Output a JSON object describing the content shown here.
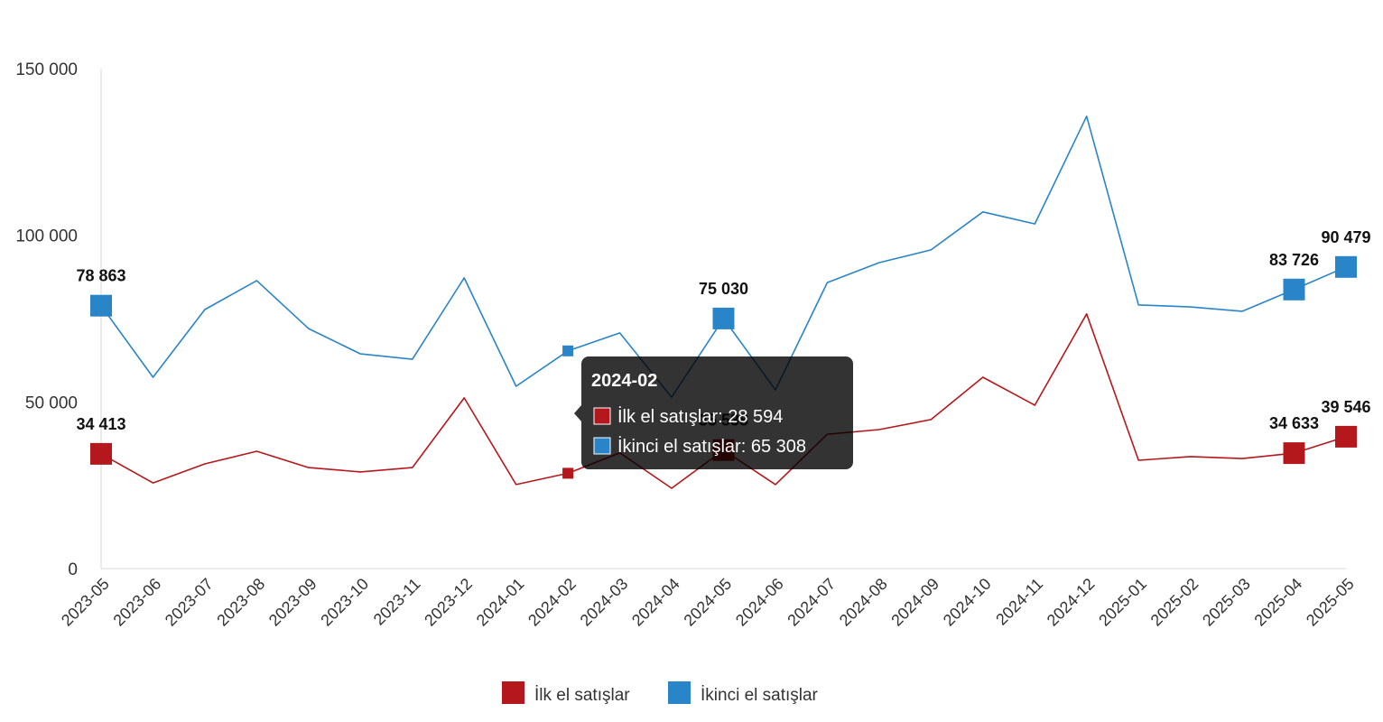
{
  "chart_data": {
    "type": "line",
    "categories": [
      "2023-05",
      "2023-06",
      "2023-07",
      "2023-08",
      "2023-09",
      "2023-10",
      "2023-11",
      "2023-12",
      "2024-01",
      "2024-02",
      "2024-03",
      "2024-04",
      "2024-05",
      "2024-06",
      "2024-07",
      "2024-08",
      "2024-09",
      "2024-10",
      "2024-11",
      "2024-12",
      "2025-01",
      "2025-02",
      "2025-03",
      "2025-04",
      "2025-05"
    ],
    "series": [
      {
        "name": "İlk el satışlar",
        "color": "#b5181c",
        "values": [
          34413,
          25700,
          31400,
          35200,
          30300,
          29000,
          30300,
          51200,
          25200,
          28594,
          34700,
          24100,
          35538,
          25200,
          40300,
          41700,
          44700,
          57400,
          49000,
          76400,
          32500,
          33600,
          33000,
          34633,
          39546
        ],
        "data_labels": {
          "2023-05": "34 413",
          "2024-05": "35 538",
          "2025-04": "34 633",
          "2025-05": "39 546"
        }
      },
      {
        "name": "İkinci el satışlar",
        "color": "#2a84c8",
        "values": [
          78863,
          57400,
          77700,
          86400,
          72000,
          64400,
          62800,
          87200,
          54700,
          65308,
          70700,
          51400,
          75030,
          53600,
          85800,
          91800,
          95600,
          107000,
          103400,
          135700,
          79100,
          78500,
          77200,
          83726,
          90479
        ],
        "data_labels": {
          "2023-05": "78 863",
          "2024-05": "75 030",
          "2025-04": "83 726",
          "2025-05": "90 479"
        }
      }
    ],
    "ylim": [
      0,
      150000
    ],
    "yticks": [
      0,
      50000,
      100000,
      150000
    ],
    "ytick_labels": [
      "0",
      "50 000",
      "100 000",
      "150 000"
    ],
    "grid": false,
    "legend": "bottom"
  },
  "tooltip": {
    "category": "2024-02",
    "rows": [
      {
        "text": "İlk el satışlar: 28 594"
      },
      {
        "text": "İkinci el satışlar: 65 308"
      }
    ]
  }
}
